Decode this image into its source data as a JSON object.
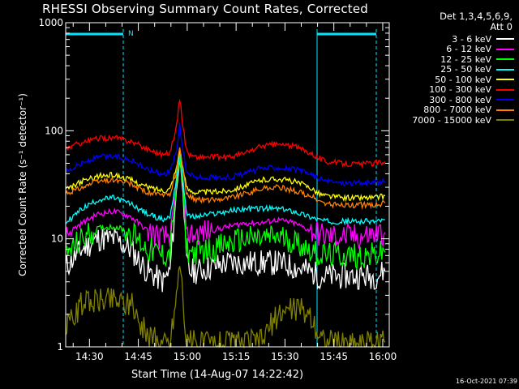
{
  "title": "RHESSI Observing Summary Count Rates, Corrected",
  "stamp": "16-Oct-2021 07:39",
  "legend_header": [
    "Det 1,3,4,5,6,9,",
    "Att 0"
  ],
  "chart_data": {
    "type": "line",
    "xlabel": "Start Time (14-Aug-07 14:22:42)",
    "ylabel": "Corrected Count Rate (s⁻¹ detector⁻¹)",
    "yscale": "log",
    "ylim": [
      1,
      1000
    ],
    "xlim": [
      "14:22:42",
      "16:02:00"
    ],
    "x_ticks": [
      "14:30",
      "14:45",
      "15:00",
      "15:15",
      "15:30",
      "15:45",
      "16:00"
    ],
    "y_ticks": [
      "1",
      "10",
      "100",
      "1000"
    ],
    "x_minutes": [
      0,
      5,
      10,
      15,
      20,
      25,
      30,
      32,
      34,
      35,
      36,
      37,
      38,
      40,
      45,
      50,
      55,
      60,
      65,
      70,
      75,
      78,
      80,
      85,
      90,
      95,
      98
    ],
    "series": [
      {
        "name": "3 - 6 keV",
        "color": "#ffffff",
        "values": [
          5.5,
          8,
          10,
          10,
          8,
          5,
          4,
          5,
          28,
          55,
          28,
          6,
          5,
          5,
          5.5,
          6,
          6,
          6,
          6,
          5.5,
          5,
          4.5,
          4.5,
          4.5,
          4.5,
          4.5,
          5
        ]
      },
      {
        "name": "6 - 12 keV",
        "color": "#ff00ff",
        "values": [
          11,
          14,
          17,
          18,
          16,
          12,
          10,
          11,
          32,
          62,
          32,
          13,
          11,
          11,
          12,
          13,
          14,
          14,
          15,
          14,
          12,
          11,
          10.5,
          10.5,
          10.5,
          11,
          11.5
        ]
      },
      {
        "name": "12 - 25 keV",
        "color": "#00ff00",
        "values": [
          7,
          10,
          12.5,
          13,
          11.5,
          8,
          7,
          7.5,
          30,
          58,
          30,
          8.5,
          7.5,
          7.5,
          8,
          9,
          10,
          10,
          10.5,
          9.5,
          8,
          7,
          7,
          7,
          7,
          7,
          7.5
        ]
      },
      {
        "name": "25 - 50 keV",
        "color": "#00ffff",
        "values": [
          14,
          19,
          23,
          24,
          21,
          17,
          15,
          16,
          36,
          65,
          36,
          18,
          16,
          16,
          17,
          18,
          19,
          19,
          19,
          18,
          16,
          15,
          14.5,
          14.5,
          14.5,
          14.5,
          15
        ]
      },
      {
        "name": "50 - 100 keV",
        "color": "#ffff00",
        "values": [
          28,
          34,
          38,
          39,
          35,
          30,
          28,
          29,
          45,
          68,
          45,
          30,
          28,
          27,
          27,
          28,
          31,
          35,
          36,
          34,
          30,
          26,
          25,
          24,
          24,
          24,
          25
        ]
      },
      {
        "name": "100 - 300 keV",
        "color": "#ff0000",
        "values": [
          68,
          78,
          85,
          86,
          80,
          68,
          60,
          63,
          110,
          200,
          110,
          68,
          60,
          57,
          57,
          57,
          62,
          72,
          75,
          72,
          63,
          55,
          52,
          50,
          49,
          50,
          52
        ]
      },
      {
        "name": "300 - 800 keV",
        "color": "#0000ff",
        "values": [
          42,
          50,
          57,
          58,
          54,
          44,
          40,
          42,
          65,
          112,
          65,
          44,
          40,
          37,
          37,
          37,
          40,
          45,
          46,
          44,
          40,
          36,
          34,
          33,
          33,
          33,
          34
        ]
      },
      {
        "name": "800 - 7000 keV",
        "color": "#ff8000",
        "values": [
          26,
          30,
          34,
          35,
          32,
          27,
          25,
          26,
          42,
          72,
          42,
          27,
          25,
          23,
          23,
          24,
          26,
          29,
          30,
          28,
          25,
          22,
          21,
          20.5,
          20.5,
          20.5,
          21.5
        ]
      },
      {
        "name": "7000 - 15000 keV",
        "color": "#808000",
        "values": [
          1.5,
          2.5,
          2.8,
          2.8,
          2.5,
          1.3,
          1.1,
          1.1,
          3,
          6.5,
          3,
          1.1,
          1.1,
          1.1,
          1.1,
          1.1,
          1.1,
          1.1,
          2,
          2.3,
          2,
          1.3,
          1.1,
          1.1,
          1.1,
          1.1,
          1.1
        ]
      }
    ],
    "night_markers": [
      "N"
    ],
    "legend_placement": "right",
    "grid": false
  }
}
